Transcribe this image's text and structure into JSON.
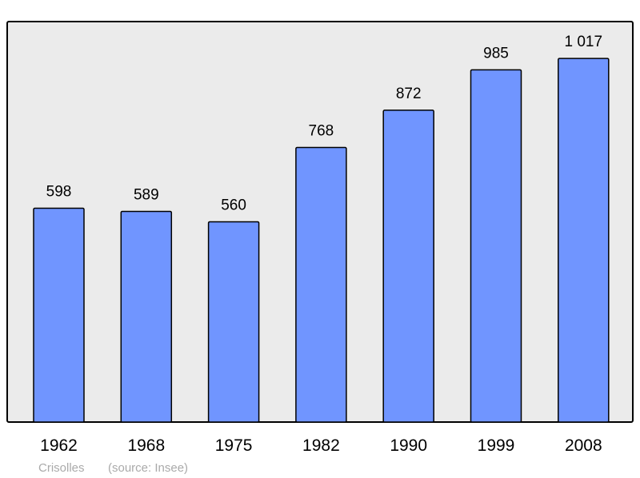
{
  "chart_data": {
    "type": "bar",
    "categories": [
      "1962",
      "1968",
      "1975",
      "1982",
      "1990",
      "1999",
      "2008"
    ],
    "values": [
      598,
      589,
      560,
      768,
      872,
      985,
      1017
    ],
    "value_labels": [
      "598",
      "589",
      "560",
      "768",
      "872",
      "985",
      "1 017"
    ],
    "ylim": [
      0,
      1120
    ],
    "grid": false,
    "legend": "none",
    "colors": {
      "bar": "#7095ff",
      "plot_background": "#ebebeb",
      "border": "#000000"
    }
  },
  "footer": {
    "place": "Crisolles",
    "source": "(source: Insee)"
  }
}
